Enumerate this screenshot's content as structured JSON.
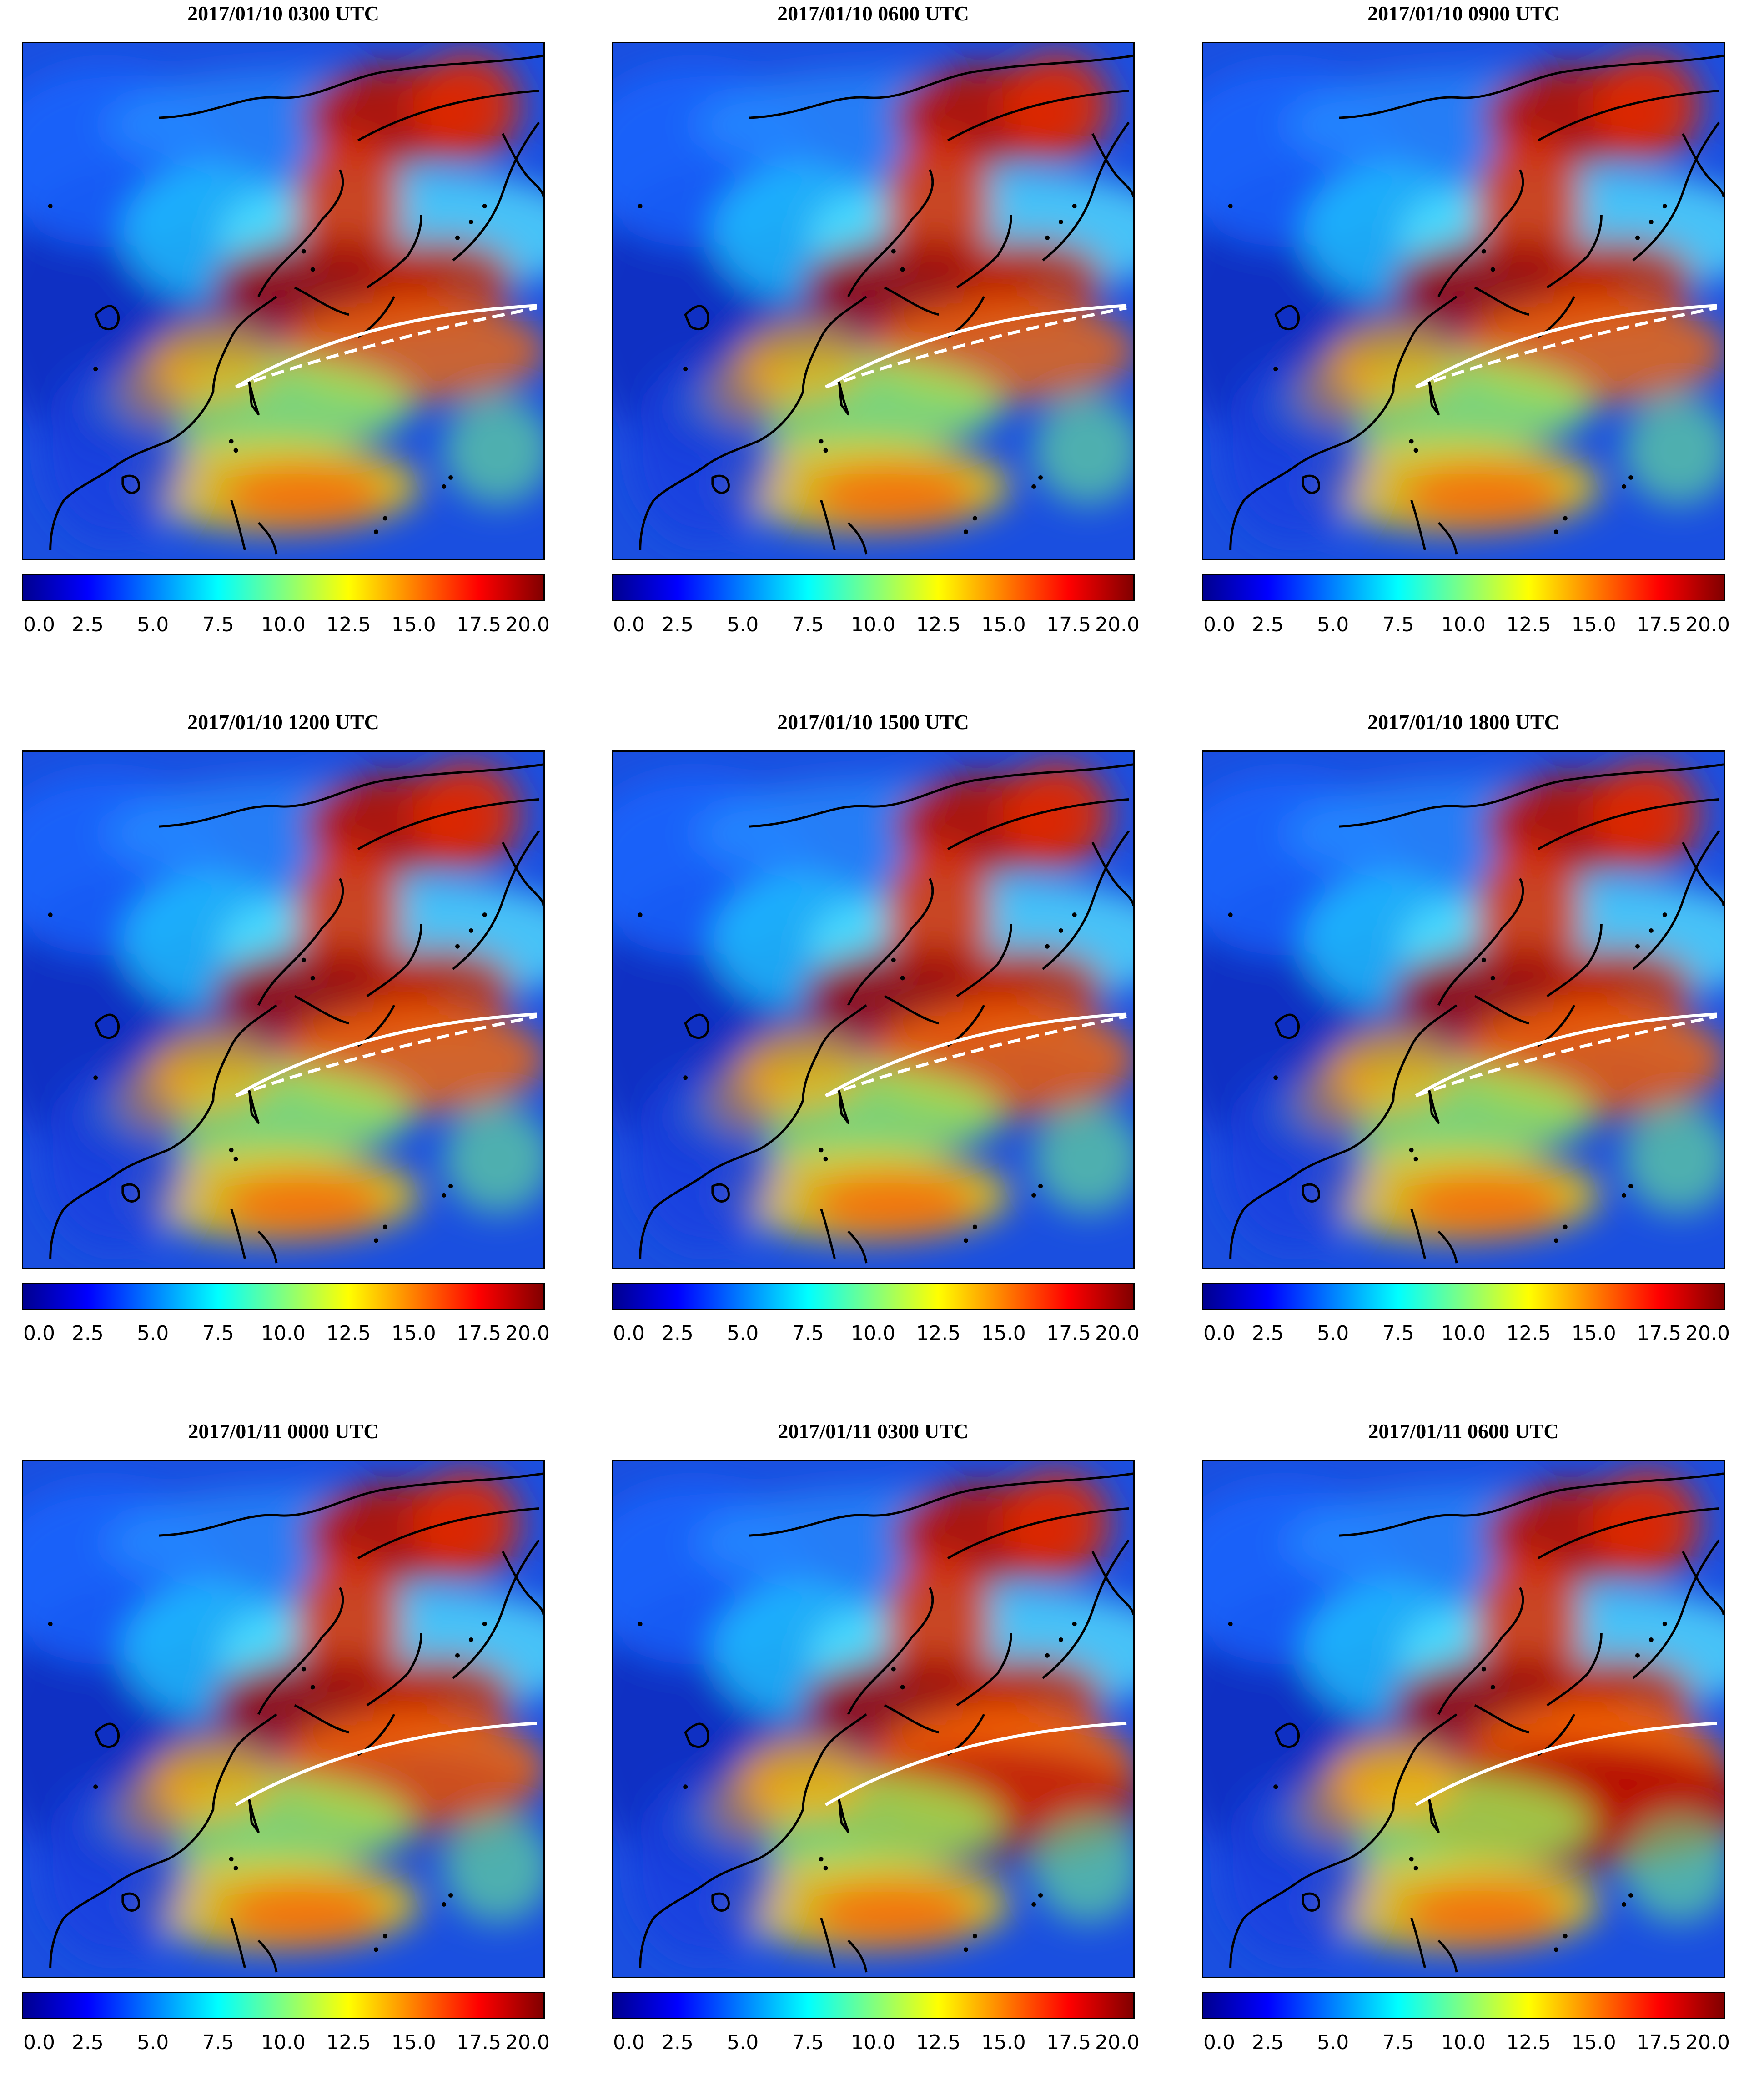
{
  "figure": {
    "colorbar": {
      "min": 0.0,
      "max": 20.0,
      "colormap": "jet",
      "ticks": [
        "0.0",
        "2.5",
        "5.0",
        "7.5",
        "10.0",
        "12.5",
        "15.0",
        "17.5",
        "20.0"
      ]
    },
    "panels": [
      {
        "title": "2017/01/10 0300 UTC",
        "intensity": 0.55,
        "dashed_line": true
      },
      {
        "title": "2017/01/10 0600 UTC",
        "intensity": 0.55,
        "dashed_line": true
      },
      {
        "title": "2017/01/10 0900 UTC",
        "intensity": 0.6,
        "dashed_line": true
      },
      {
        "title": "2017/01/10 1200 UTC",
        "intensity": 0.65,
        "dashed_line": true
      },
      {
        "title": "2017/01/10 1500 UTC",
        "intensity": 0.7,
        "dashed_line": true
      },
      {
        "title": "2017/01/10 1800 UTC",
        "intensity": 0.7,
        "dashed_line": true
      },
      {
        "title": "2017/01/11 0000 UTC",
        "intensity": 0.75,
        "dashed_line": false
      },
      {
        "title": "2017/01/11 0300 UTC",
        "intensity": 0.9,
        "dashed_line": false
      },
      {
        "title": "2017/01/11 0600 UTC",
        "intensity": 1.0,
        "dashed_line": false
      }
    ],
    "colors": {
      "jet_stops": [
        "#00008f",
        "#0000ff",
        "#0080ff",
        "#00ffff",
        "#80ff80",
        "#ffff00",
        "#ff8000",
        "#ff0000",
        "#800000"
      ],
      "coastline": "#000000",
      "track_line": "#ffffff"
    }
  }
}
